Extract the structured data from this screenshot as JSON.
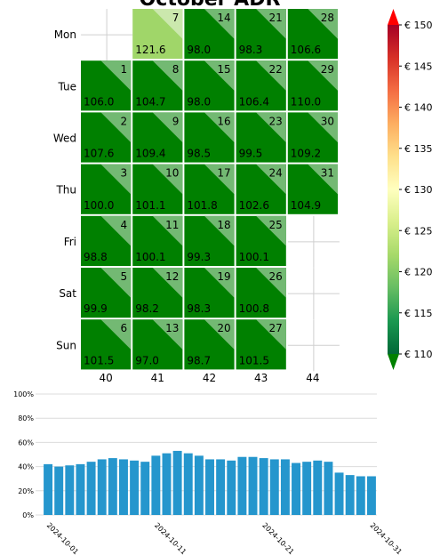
{
  "chart_data": [
    {
      "type": "heatmap",
      "title": "October ADR",
      "row_labels": [
        "Mon",
        "Tue",
        "Wed",
        "Thu",
        "Fri",
        "Sat",
        "Sun"
      ],
      "column_labels": [
        "40",
        "41",
        "42",
        "43",
        "44"
      ],
      "cells": [
        {
          "day": 1,
          "value": 106.0,
          "row": 1,
          "col": 0
        },
        {
          "day": 2,
          "value": 107.6,
          "row": 2,
          "col": 0
        },
        {
          "day": 3,
          "value": 100.0,
          "row": 3,
          "col": 0
        },
        {
          "day": 4,
          "value": 98.8,
          "row": 4,
          "col": 0
        },
        {
          "day": 5,
          "value": 99.9,
          "row": 5,
          "col": 0
        },
        {
          "day": 6,
          "value": 101.5,
          "row": 6,
          "col": 0
        },
        {
          "day": 7,
          "value": 121.6,
          "row": 0,
          "col": 1
        },
        {
          "day": 8,
          "value": 104.7,
          "row": 1,
          "col": 1
        },
        {
          "day": 9,
          "value": 109.4,
          "row": 2,
          "col": 1
        },
        {
          "day": 10,
          "value": 101.1,
          "row": 3,
          "col": 1
        },
        {
          "day": 11,
          "value": 100.1,
          "row": 4,
          "col": 1
        },
        {
          "day": 12,
          "value": 98.2,
          "row": 5,
          "col": 1
        },
        {
          "day": 13,
          "value": 97.0,
          "row": 6,
          "col": 1
        },
        {
          "day": 14,
          "value": 98.0,
          "row": 0,
          "col": 2
        },
        {
          "day": 15,
          "value": 98.0,
          "row": 1,
          "col": 2
        },
        {
          "day": 16,
          "value": 98.5,
          "row": 2,
          "col": 2
        },
        {
          "day": 17,
          "value": 101.8,
          "row": 3,
          "col": 2
        },
        {
          "day": 18,
          "value": 99.3,
          "row": 4,
          "col": 2
        },
        {
          "day": 19,
          "value": 98.3,
          "row": 5,
          "col": 2
        },
        {
          "day": 20,
          "value": 98.7,
          "row": 6,
          "col": 2
        },
        {
          "day": 21,
          "value": 98.3,
          "row": 0,
          "col": 3
        },
        {
          "day": 22,
          "value": 106.4,
          "row": 1,
          "col": 3
        },
        {
          "day": 23,
          "value": 99.5,
          "row": 2,
          "col": 3
        },
        {
          "day": 24,
          "value": 102.6,
          "row": 3,
          "col": 3
        },
        {
          "day": 25,
          "value": 100.1,
          "row": 4,
          "col": 3
        },
        {
          "day": 26,
          "value": 100.8,
          "row": 5,
          "col": 3
        },
        {
          "day": 27,
          "value": 101.5,
          "row": 6,
          "col": 3
        },
        {
          "day": 28,
          "value": 106.6,
          "row": 0,
          "col": 4
        },
        {
          "day": 29,
          "value": 110.0,
          "row": 1,
          "col": 4
        },
        {
          "day": 30,
          "value": 109.2,
          "row": 2,
          "col": 4
        },
        {
          "day": 31,
          "value": 104.9,
          "row": 3,
          "col": 4
        }
      ],
      "colorbar": {
        "min": 110,
        "max": 150,
        "ticks": [
          "€ 110",
          "€ 115",
          "€ 120",
          "€ 125",
          "€ 130",
          "€ 135",
          "€ 140",
          "€ 145",
          "€ 150"
        ],
        "tick_values": [
          110,
          115,
          120,
          125,
          130,
          135,
          140,
          145,
          150
        ],
        "colormap": "red-yellow-green reversed"
      }
    },
    {
      "type": "bar",
      "title": "",
      "x": [
        "2024-10-01",
        "2024-10-02",
        "2024-10-03",
        "2024-10-04",
        "2024-10-05",
        "2024-10-06",
        "2024-10-07",
        "2024-10-08",
        "2024-10-09",
        "2024-10-10",
        "2024-10-11",
        "2024-10-12",
        "2024-10-13",
        "2024-10-14",
        "2024-10-15",
        "2024-10-16",
        "2024-10-17",
        "2024-10-18",
        "2024-10-19",
        "2024-10-20",
        "2024-10-21",
        "2024-10-22",
        "2024-10-23",
        "2024-10-24",
        "2024-10-25",
        "2024-10-26",
        "2024-10-27",
        "2024-10-28",
        "2024-10-29",
        "2024-10-30",
        "2024-10-31"
      ],
      "values": [
        42,
        40,
        41,
        42,
        44,
        46,
        47,
        46,
        45,
        44,
        49,
        51,
        53,
        51,
        49,
        46,
        46,
        45,
        48,
        48,
        47,
        46,
        46,
        43,
        44,
        45,
        44,
        35,
        33,
        32,
        32
      ],
      "ylim": [
        0,
        100
      ],
      "ytick_labels": [
        "0%",
        "20%",
        "40%",
        "60%",
        "80%",
        "100%"
      ],
      "xtick_labels": [
        "2024-10-01",
        "2024-10-11",
        "2024-10-21",
        "2024-10-31"
      ],
      "grid": "horizontal",
      "bar_color": "#2596cd"
    }
  ]
}
